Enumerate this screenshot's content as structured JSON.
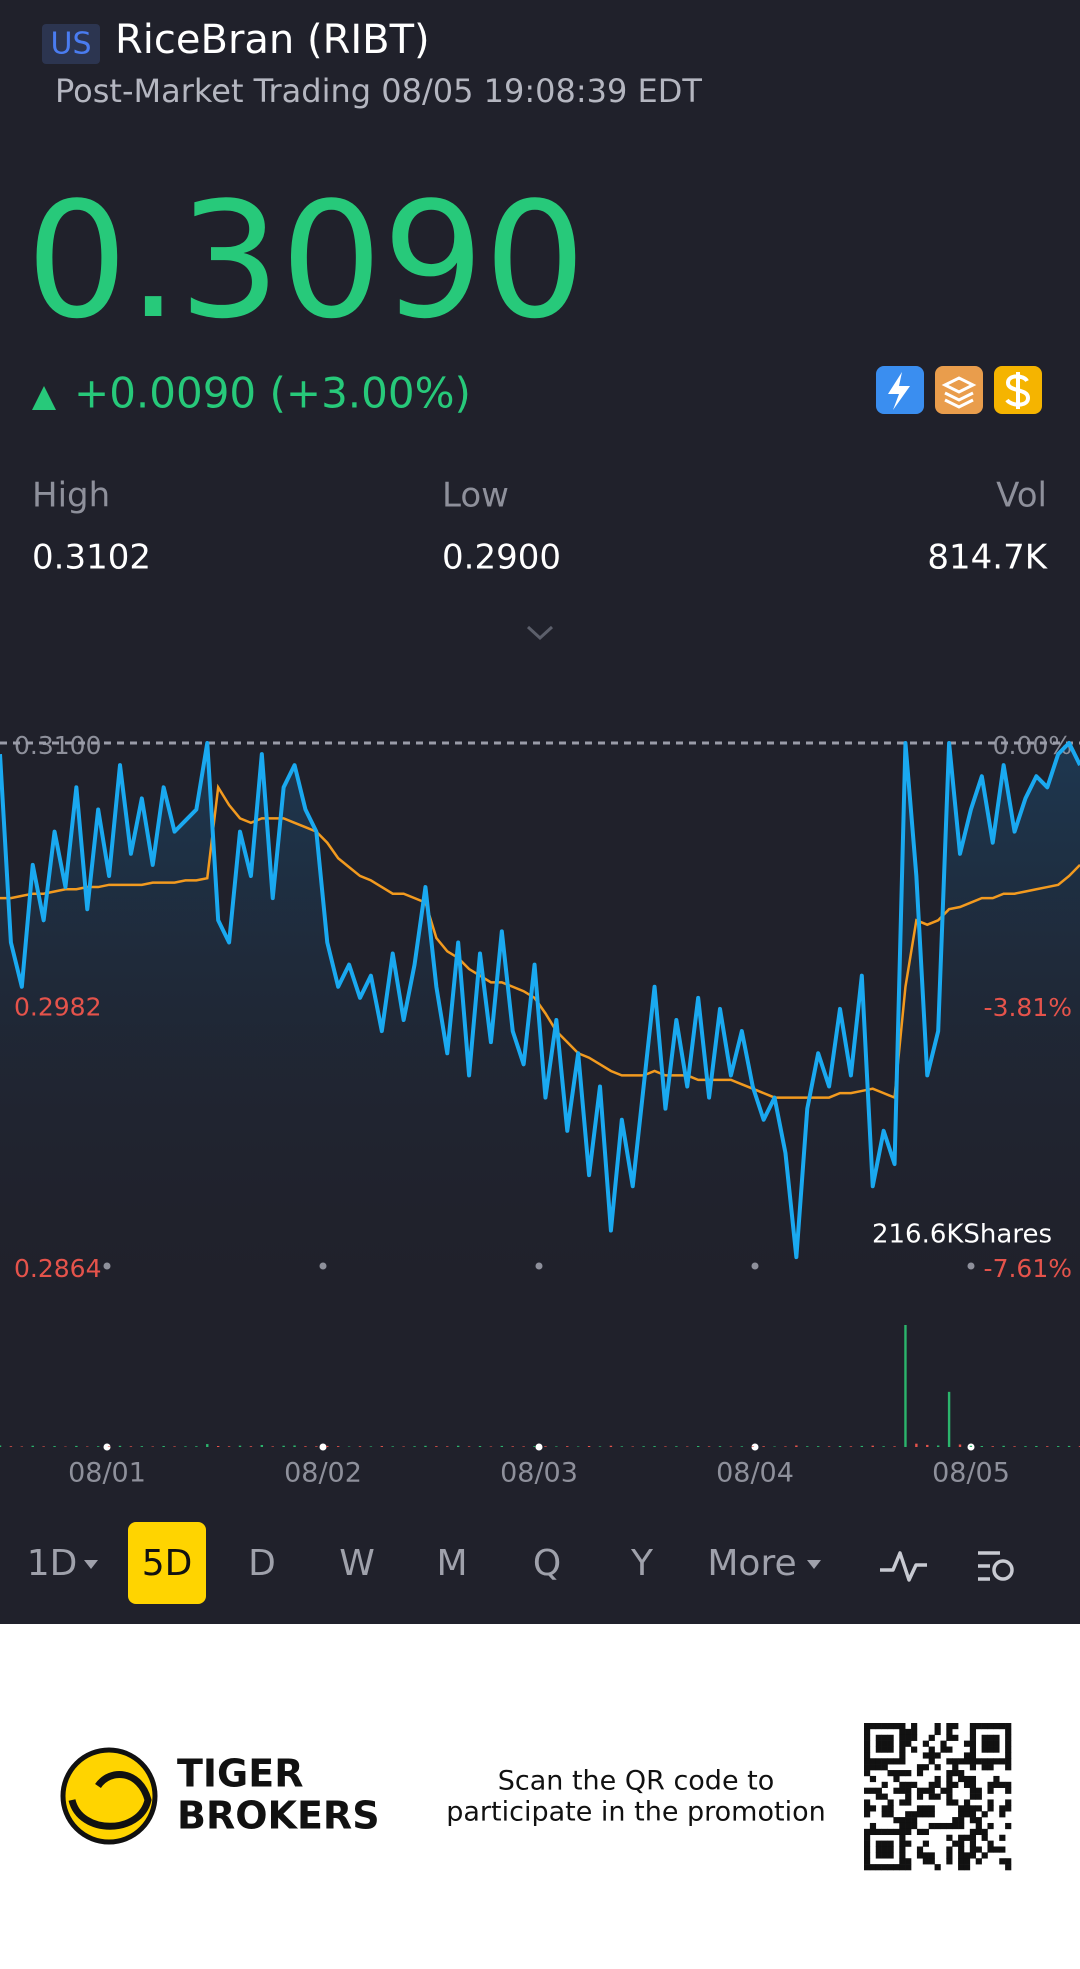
{
  "header": {
    "market": "US",
    "title": "RiceBran (RIBT)",
    "subtitle": "Post-Market Trading 08/05 19:08:39 EDT",
    "price": "0.3090",
    "change": "+0.0090 (+3.00%)"
  },
  "stats": [
    {
      "label": "High",
      "value": "0.3102"
    },
    {
      "label": "Low",
      "value": "0.2900"
    },
    {
      "label": "Vol",
      "value": "814.7K"
    }
  ],
  "chart_data": {
    "type": "line",
    "x_labels": [
      "08/01",
      "08/02",
      "08/03",
      "08/04",
      "08/05"
    ],
    "ylim": [
      0.2864,
      0.31
    ],
    "yticks": [
      {
        "value": 0.31,
        "label": "0.3100"
      },
      0.2982,
      0.2864
    ],
    "y2lim": [
      -7.61,
      0
    ],
    "y2ticks": [
      {
        "value": 0,
        "label": "0.00%"
      },
      {
        "value": -3.81,
        "label": "-3.81%"
      },
      {
        "value": -7.61,
        "label": "-7.61%"
      }
    ],
    "series": [
      {
        "color": "#1aa9f0",
        "values": [
          0.3095,
          0.301,
          0.299,
          0.3045,
          0.302,
          0.306,
          0.3035,
          0.308,
          0.3025,
          0.307,
          0.304,
          0.309,
          0.305,
          0.3075,
          0.3045,
          0.308,
          0.306,
          0.3065,
          0.307,
          0.31,
          0.302,
          0.301,
          0.306,
          0.304,
          0.3095,
          0.303,
          0.308,
          0.309,
          0.307,
          0.306,
          0.301,
          0.299,
          0.3,
          0.2985,
          0.2995,
          0.297,
          0.3005,
          0.2975,
          0.3,
          0.3035,
          0.299,
          0.296,
          0.301,
          0.295,
          0.3005,
          0.2965,
          0.3015,
          0.297,
          0.2955,
          0.3,
          0.294,
          0.2975,
          0.2925,
          0.296,
          0.2905,
          0.2945,
          0.288,
          0.293,
          0.29,
          0.2945,
          0.299,
          0.2935,
          0.2975,
          0.2945,
          0.2985,
          0.294,
          0.298,
          0.295,
          0.297,
          0.2945,
          0.293,
          0.294,
          0.2915,
          0.2868,
          0.2935,
          0.296,
          0.2945,
          0.298,
          0.295,
          0.2995,
          0.29,
          0.2925,
          0.291,
          0.31,
          0.304,
          0.295,
          0.297,
          0.31,
          0.305,
          0.307,
          0.3085,
          0.3055,
          0.309,
          0.306,
          0.3075,
          0.3085,
          0.308,
          0.3095,
          0.31,
          0.309
        ]
      },
      {
        "color": "#f29a1f",
        "values": [
          0.303,
          0.303,
          0.3031,
          0.3032,
          0.3032,
          0.3033,
          0.3034,
          0.3034,
          0.3035,
          0.3035,
          0.3036,
          0.3036,
          0.3036,
          0.3036,
          0.3037,
          0.3037,
          0.3037,
          0.3038,
          0.3038,
          0.3039,
          0.308,
          0.3072,
          0.3066,
          0.3064,
          0.3066,
          0.3066,
          0.3066,
          0.3064,
          0.3062,
          0.306,
          0.3055,
          0.3048,
          0.3044,
          0.304,
          0.3038,
          0.3035,
          0.3032,
          0.3032,
          0.303,
          0.3028,
          0.3012,
          0.3006,
          0.3003,
          0.2998,
          0.2995,
          0.2992,
          0.2992,
          0.299,
          0.2988,
          0.2985,
          0.2978,
          0.297,
          0.2965,
          0.296,
          0.2958,
          0.2955,
          0.2952,
          0.295,
          0.295,
          0.295,
          0.2952,
          0.295,
          0.295,
          0.295,
          0.2948,
          0.2948,
          0.2948,
          0.2948,
          0.2946,
          0.2944,
          0.2942,
          0.294,
          0.294,
          0.294,
          0.294,
          0.294,
          0.294,
          0.2942,
          0.2942,
          0.2943,
          0.2944,
          0.2942,
          0.294,
          0.299,
          0.302,
          0.3018,
          0.302,
          0.3025,
          0.3026,
          0.3028,
          0.303,
          0.303,
          0.3032,
          0.3032,
          0.3033,
          0.3034,
          0.3035,
          0.3036,
          0.304,
          0.3045
        ]
      }
    ],
    "volume": {
      "up_color": "#2bb56c",
      "down_color": "#e5534b",
      "ylim": [
        0,
        216600
      ],
      "yticks": [
        {
          "value": 216600,
          "label": "216.6KShares"
        }
      ],
      "values": [
        1800,
        900,
        600,
        1500,
        700,
        1100,
        500,
        1300,
        600,
        900,
        700,
        1400,
        800,
        1000,
        600,
        1200,
        700,
        800,
        900,
        3500,
        1200,
        800,
        1600,
        900,
        2400,
        700,
        1500,
        1800,
        900,
        800,
        1300,
        1000,
        600,
        900,
        700,
        1100,
        800,
        600,
        900,
        1400,
        1000,
        800,
        1500,
        700,
        1200,
        600,
        1300,
        800,
        700,
        1100,
        900,
        700,
        1000,
        600,
        1200,
        700,
        1500,
        800,
        600,
        900,
        1100,
        700,
        900,
        600,
        1200,
        700,
        1000,
        600,
        800,
        700,
        900,
        600,
        700,
        1800,
        900,
        1000,
        700,
        1200,
        800,
        1300,
        1600,
        900,
        800,
        146000,
        4000,
        2500,
        1800,
        66000,
        3000,
        1500,
        1200,
        900,
        1400,
        800,
        1000,
        1200,
        900,
        1100,
        1300,
        1000
      ]
    }
  },
  "tabs": [
    "1D",
    "5D",
    "D",
    "W",
    "M",
    "Q",
    "Y",
    "More"
  ],
  "footer": {
    "brand_line1": "TIGER",
    "brand_line2": "BROKERS",
    "promo_line1": "Scan the QR code to",
    "promo_line2": "participate in the promotion"
  }
}
